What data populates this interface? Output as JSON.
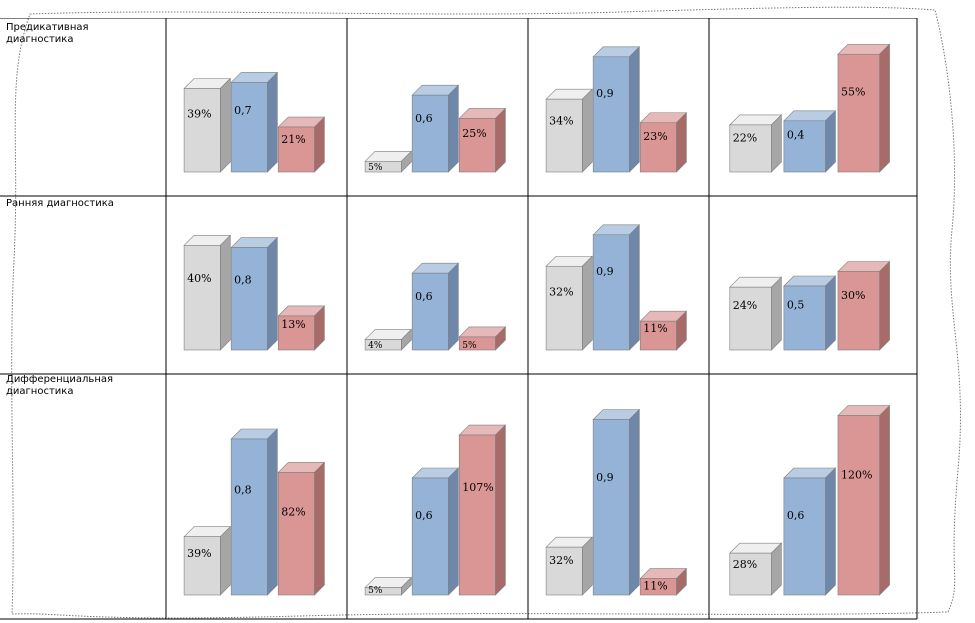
{
  "chart_data": {
    "type": "bar",
    "rows": [
      {
        "label": "Предикативная диагностика",
        "cells": [
          [
            {
              "value": 39,
              "text": "39%"
            },
            {
              "value": 0.7,
              "text": "0,7"
            },
            {
              "value": 21,
              "text": "21%"
            }
          ],
          [
            {
              "value": 5,
              "text": "5%"
            },
            {
              "value": 0.6,
              "text": "0,6"
            },
            {
              "value": 25,
              "text": "25%"
            }
          ],
          [
            {
              "value": 34,
              "text": "34%"
            },
            {
              "value": 0.9,
              "text": "0,9"
            },
            {
              "value": 23,
              "text": "23%"
            }
          ],
          [
            {
              "value": 22,
              "text": "22%"
            },
            {
              "value": 0.4,
              "text": "0,4"
            },
            {
              "value": 55,
              "text": "55%"
            }
          ]
        ]
      },
      {
        "label": "Ранняя диагностика",
        "cells": [
          [
            {
              "value": 40,
              "text": "40%"
            },
            {
              "value": 0.8,
              "text": "0,8"
            },
            {
              "value": 13,
              "text": "13%"
            }
          ],
          [
            {
              "value": 4,
              "text": "4%"
            },
            {
              "value": 0.6,
              "text": "0,6"
            },
            {
              "value": 5,
              "text": "5%"
            }
          ],
          [
            {
              "value": 32,
              "text": "32%"
            },
            {
              "value": 0.9,
              "text": "0,9"
            },
            {
              "value": 11,
              "text": "11%"
            }
          ],
          [
            {
              "value": 24,
              "text": "24%"
            },
            {
              "value": 0.5,
              "text": "0,5"
            },
            {
              "value": 30,
              "text": "30%"
            }
          ]
        ]
      },
      {
        "label": "Дифференциальная диагностика",
        "cells": [
          [
            {
              "value": 39,
              "text": "39%"
            },
            {
              "value": 0.8,
              "text": "0,8"
            },
            {
              "value": 82,
              "text": "82%"
            }
          ],
          [
            {
              "value": 5,
              "text": "5%"
            },
            {
              "value": 0.6,
              "text": "0,6"
            },
            {
              "value": 107,
              "text": "107%"
            }
          ],
          [
            {
              "value": 32,
              "text": "32%"
            },
            {
              "value": 0.9,
              "text": "0,9"
            },
            {
              "value": 11,
              "text": "11%"
            }
          ],
          [
            {
              "value": 28,
              "text": "28%"
            },
            {
              "value": 0.6,
              "text": "0,6"
            },
            {
              "value": 120,
              "text": "120%"
            }
          ]
        ]
      }
    ],
    "series_colors": {
      "gray": {
        "front": "#d9d9d9",
        "top": "#efefef",
        "side": "#a6a6a6"
      },
      "blue": {
        "front": "#95b3d7",
        "top": "#b8cce4",
        "side": "#6f87a8"
      },
      "red": {
        "front": "#da9694",
        "top": "#e6b9b8",
        "side": "#a76b69"
      }
    },
    "grid": true
  }
}
